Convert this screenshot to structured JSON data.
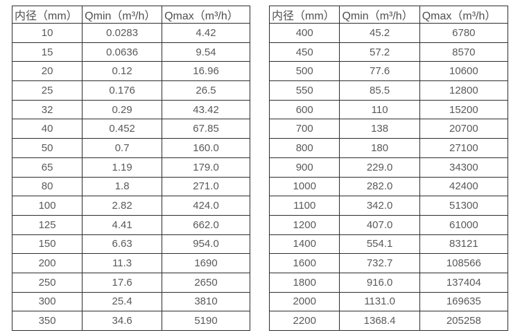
{
  "colors": {
    "background": "#ffffff",
    "border": "#2b2b2b",
    "header_text": "#4f4f4f",
    "cell_text": "#595959"
  },
  "tables": [
    {
      "name": "small-diameter-flow-range",
      "headers": [
        "内径（mm）",
        "Qmin（m³/h）",
        "Qmax（m³/h）"
      ],
      "rows": [
        [
          "10",
          "0.0283",
          "4.42"
        ],
        [
          "15",
          "0.0636",
          "9.54"
        ],
        [
          "20",
          "0.12",
          "16.96"
        ],
        [
          "25",
          "0.176",
          "26.5"
        ],
        [
          "32",
          "0.29",
          "43.42"
        ],
        [
          "40",
          "0.452",
          "67.85"
        ],
        [
          "50",
          "0.7",
          "160.0"
        ],
        [
          "65",
          "1.19",
          "179.0"
        ],
        [
          "80",
          "1.8",
          "271.0"
        ],
        [
          "100",
          "2.82",
          "424.0"
        ],
        [
          "125",
          "4.41",
          "662.0"
        ],
        [
          "150",
          "6.63",
          "954.0"
        ],
        [
          "200",
          "11.3",
          "1690"
        ],
        [
          "250",
          "17.6",
          "2650"
        ],
        [
          "300",
          "25.4",
          "3810"
        ],
        [
          "350",
          "34.6",
          "5190"
        ]
      ]
    },
    {
      "name": "large-diameter-flow-range",
      "headers": [
        "内径（mm）",
        "Qmin（m³/h）",
        "Qmax（m³/h）"
      ],
      "rows": [
        [
          "400",
          "45.2",
          "6780"
        ],
        [
          "450",
          "57.2",
          "8570"
        ],
        [
          "500",
          "77.6",
          "10600"
        ],
        [
          "550",
          "85.5",
          "12800"
        ],
        [
          "600",
          "110",
          "15200"
        ],
        [
          "700",
          "138",
          "20700"
        ],
        [
          "800",
          "180",
          "27100"
        ],
        [
          "900",
          "229.0",
          "34300"
        ],
        [
          "1000",
          "282.0",
          "42400"
        ],
        [
          "1100",
          "342.0",
          "51300"
        ],
        [
          "1200",
          "407.0",
          "61000"
        ],
        [
          "1400",
          "554.1",
          "83121"
        ],
        [
          "1600",
          "732.7",
          "108566"
        ],
        [
          "1800",
          "916.0",
          "137404"
        ],
        [
          "2000",
          "1131.0",
          "169635"
        ],
        [
          "2200",
          "1368.4",
          "205258"
        ]
      ]
    }
  ]
}
